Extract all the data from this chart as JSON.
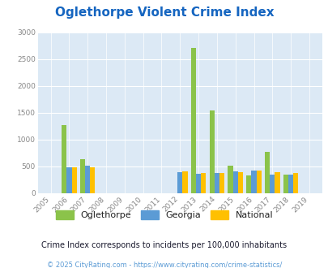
{
  "title": "Oglethorpe Violent Crime Index",
  "years": [
    2005,
    2006,
    2007,
    2008,
    2009,
    2010,
    2011,
    2012,
    2013,
    2014,
    2015,
    2016,
    2017,
    2018,
    2019
  ],
  "oglethorpe": [
    0,
    1270,
    630,
    0,
    0,
    0,
    0,
    0,
    2700,
    1540,
    510,
    330,
    770,
    340,
    0
  ],
  "georgia": [
    0,
    480,
    510,
    0,
    0,
    0,
    0,
    390,
    365,
    370,
    400,
    415,
    350,
    345,
    0
  ],
  "national": [
    0,
    480,
    480,
    0,
    0,
    0,
    0,
    400,
    380,
    370,
    390,
    415,
    395,
    380,
    0
  ],
  "color_oglethorpe": "#8bc34a",
  "color_georgia": "#5b9bd5",
  "color_national": "#ffc000",
  "bg_color": "#dce9f5",
  "ylim": [
    0,
    3000
  ],
  "yticks": [
    0,
    500,
    1000,
    1500,
    2000,
    2500,
    3000
  ],
  "bar_width": 0.27,
  "subtitle": "Crime Index corresponds to incidents per 100,000 inhabitants",
  "footer": "© 2025 CityRating.com - https://www.cityrating.com/crime-statistics/",
  "title_color": "#1565c0",
  "subtitle_color": "#1a1a2e",
  "footer_color": "#5b9bd5"
}
